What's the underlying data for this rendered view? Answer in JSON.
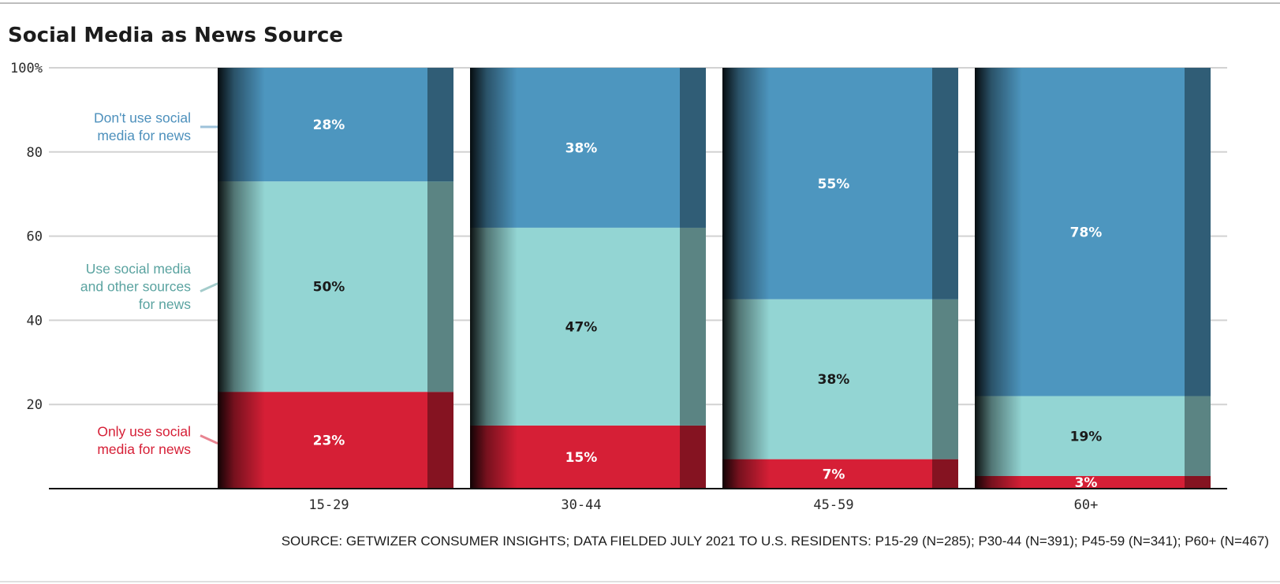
{
  "title": "Social Media as News Source",
  "source": "SOURCE: GETWIZER CONSUMER INSIGHTS; DATA FIELDED JULY 2021 TO U.S. RESIDENTS: P15-29 (N=285); P30-44 (N=391); P45-59 (N=341); P60+ (N=467)",
  "chart_data": {
    "type": "bar",
    "stacked": true,
    "percent_stacked": true,
    "categories": [
      "15-29",
      "30-44",
      "45-59",
      "60+"
    ],
    "ylim": [
      0,
      100
    ],
    "yticks": [
      20,
      40,
      60,
      80,
      100
    ],
    "ytick_labels": [
      "20",
      "40",
      "60",
      "80",
      "100%"
    ],
    "grid": true,
    "legend_placement": "left, inline labels",
    "series": [
      {
        "name": "Only use social media for news",
        "label_lines": [
          "Only use social",
          "media for news"
        ],
        "values": [
          23,
          15,
          7,
          3
        ],
        "labels": [
          "23%",
          "15%",
          "7%",
          "3%"
        ],
        "color": "#d61f36",
        "label_color": "#ffffff",
        "legend_color": "#d61f36"
      },
      {
        "name": "Use social media and other sources for news",
        "label_lines": [
          "Use social media",
          "and other sources",
          "for news"
        ],
        "values": [
          50,
          47,
          38,
          19
        ],
        "labels": [
          "50%",
          "47%",
          "38%",
          "19%"
        ],
        "color": "#93d5d3",
        "label_color": "#1a1a1a",
        "legend_color": "#5aa3a0"
      },
      {
        "name": "Don't use social media for news",
        "label_lines": [
          "Don't use social",
          "media for news"
        ],
        "values": [
          28,
          38,
          55,
          78
        ],
        "labels": [
          "28%",
          "38%",
          "55%",
          "78%"
        ],
        "color": "#4d96bf",
        "label_color": "#ffffff",
        "legend_color": "#4d90bc"
      }
    ]
  }
}
